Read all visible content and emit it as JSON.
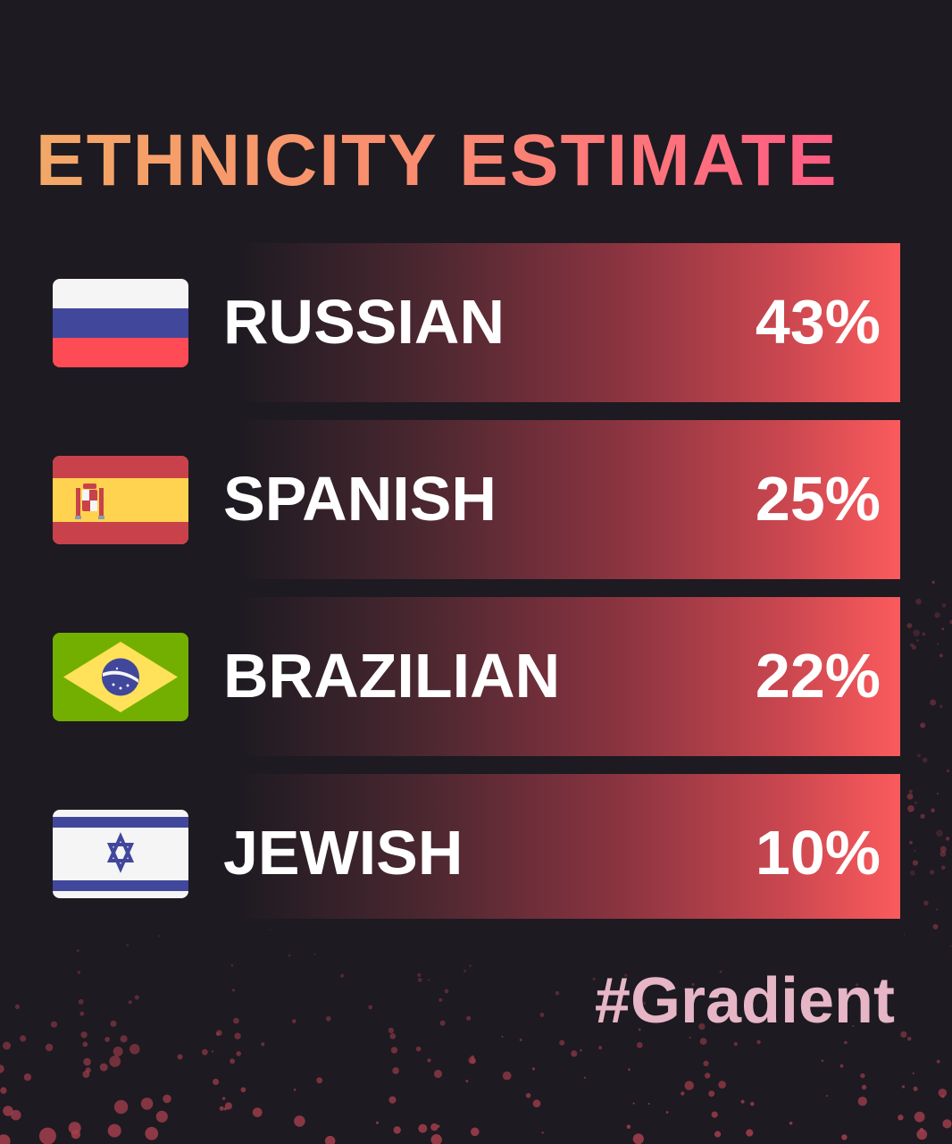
{
  "title": {
    "part1": "ETHNICITY",
    "part2": "ESTIMATE"
  },
  "rows": [
    {
      "label": "RUSSIAN",
      "percent": "43%",
      "flag": "russia-flag"
    },
    {
      "label": "SPANISH",
      "percent": "25%",
      "flag": "spain-flag"
    },
    {
      "label": "BRAZILIAN",
      "percent": "22%",
      "flag": "brazil-flag"
    },
    {
      "label": "JEWISH",
      "percent": "10%",
      "flag": "israel-flag"
    }
  ],
  "hashtag": "#Gradient",
  "colors": {
    "background": "#1d1a21",
    "bar_end": "#fb5b5d",
    "title_start": "#f3a867",
    "title_end": "#fd4f86",
    "hashtag": "#e6b6c6"
  }
}
